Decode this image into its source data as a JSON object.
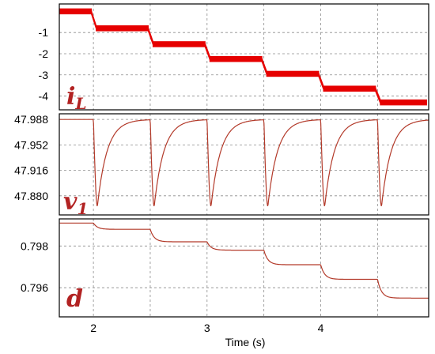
{
  "colors": {
    "trace": "#e60000",
    "thin_trace": "#b33a2a",
    "label": "#b22222",
    "grid": "#8c8c8c",
    "frame": "#000000"
  },
  "x_axis": {
    "label": "Time (s)",
    "range": [
      1.7,
      4.95
    ],
    "ticks": [
      2,
      3,
      4
    ],
    "tick_labels": [
      "2",
      "3",
      "4"
    ]
  },
  "chart_data": [
    {
      "type": "line",
      "signal_symbol": "i",
      "signal_subscript": "L",
      "ylim": [
        -4.65,
        0.35
      ],
      "ticks": [
        -1,
        -2,
        -3,
        -4
      ],
      "tick_labels": [
        "-1",
        "-2",
        "-3",
        "-4"
      ],
      "steps": [
        {
          "t0": 1.7,
          "t1": 2.0,
          "value": 0.0
        },
        {
          "t0": 2.0,
          "t1": 2.5,
          "value": -0.8
        },
        {
          "t0": 2.5,
          "t1": 3.0,
          "value": -1.55
        },
        {
          "t0": 3.0,
          "t1": 3.5,
          "value": -2.25
        },
        {
          "t0": 3.5,
          "t1": 4.0,
          "value": -2.95
        },
        {
          "t0": 4.0,
          "t1": 4.5,
          "value": -3.65
        },
        {
          "t0": 4.5,
          "t1": 4.95,
          "value": -4.3
        }
      ],
      "ripple_amplitude": 0.28
    },
    {
      "type": "line",
      "signal_symbol": "v",
      "signal_subscript": "1",
      "ylim": [
        47.853,
        47.996
      ],
      "ticks": [
        47.988,
        47.952,
        47.916,
        47.88
      ],
      "tick_labels": [
        "47.988",
        "47.952",
        "47.916",
        "47.880"
      ],
      "baseline": 47.988,
      "dip_min": 47.865,
      "dip_times": [
        2.0,
        2.5,
        3.0,
        3.5,
        4.0,
        4.5
      ]
    },
    {
      "type": "line",
      "signal_symbol": "d",
      "ylim": [
        0.7946,
        0.7993
      ],
      "ticks": [
        0.798,
        0.796
      ],
      "tick_labels": [
        "0.798",
        "0.796"
      ],
      "levels": [
        0.7991,
        0.7988,
        0.7982,
        0.7978,
        0.7971,
        0.7964,
        0.7955
      ],
      "step_times": [
        2.0,
        2.5,
        3.0,
        3.5,
        4.0,
        4.5
      ]
    }
  ]
}
